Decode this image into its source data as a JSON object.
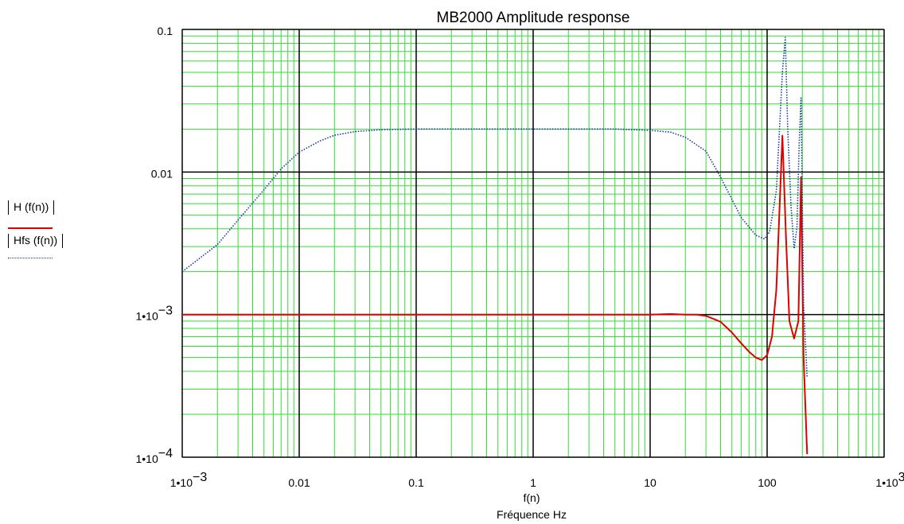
{
  "chart_data": {
    "type": "line",
    "title": "MB2000 Amplitude response",
    "xlabel": "f(n)",
    "xlabel2": "Fréquence Hz",
    "xscale": "log",
    "yscale": "log",
    "xlim": [
      0.001,
      1000
    ],
    "ylim": [
      0.0001,
      0.1
    ],
    "grid": true,
    "x_ticks": [
      {
        "value": 0.001,
        "label": "1•10",
        "exp": "−3"
      },
      {
        "value": 0.01,
        "label": "0.01",
        "exp": ""
      },
      {
        "value": 0.1,
        "label": "0.1",
        "exp": ""
      },
      {
        "value": 1,
        "label": "1",
        "exp": ""
      },
      {
        "value": 10,
        "label": "10",
        "exp": ""
      },
      {
        "value": 100,
        "label": "100",
        "exp": ""
      },
      {
        "value": 1000,
        "label": "1•10",
        "exp": "3"
      }
    ],
    "y_ticks": [
      {
        "value": 0.1,
        "label": "0.1",
        "exp": ""
      },
      {
        "value": 0.01,
        "label": "0.01",
        "exp": ""
      },
      {
        "value": 0.001,
        "label": "1•10",
        "exp": "−3"
      },
      {
        "value": 0.0001,
        "label": "1•10",
        "exp": "−4"
      }
    ],
    "series": [
      {
        "name": "| H (f(n)) |",
        "color": "#e00000",
        "style": "solid",
        "x": [
          0.001,
          0.01,
          0.1,
          1,
          10,
          15,
          20,
          25,
          30,
          40,
          50,
          60,
          70,
          80,
          90,
          100,
          110,
          120,
          135,
          145,
          155,
          170,
          185,
          195,
          205,
          220
        ],
        "y": [
          0.001,
          0.001,
          0.001,
          0.001,
          0.001,
          0.00101,
          0.001,
          0.001,
          0.00098,
          0.00089,
          0.00075,
          0.00063,
          0.00055,
          0.0005,
          0.00048,
          0.00052,
          0.0007,
          0.0015,
          0.018,
          0.0035,
          0.0009,
          0.00068,
          0.0009,
          0.0092,
          0.0005,
          0.000105
        ]
      },
      {
        "name": "| Hfs (f(n)) |",
        "color": "#1a3aa8",
        "style": "dotted",
        "x": [
          0.001,
          0.002,
          0.003,
          0.005,
          0.007,
          0.01,
          0.015,
          0.02,
          0.03,
          0.05,
          0.1,
          0.5,
          1,
          5,
          10,
          15,
          20,
          30,
          40,
          60,
          80,
          95,
          105,
          120,
          135,
          143,
          150,
          160,
          170,
          180,
          188,
          195,
          205,
          220
        ],
        "y": [
          0.002,
          0.0031,
          0.0046,
          0.0075,
          0.0105,
          0.0138,
          0.0165,
          0.0181,
          0.0192,
          0.0198,
          0.02,
          0.02,
          0.02,
          0.02,
          0.0196,
          0.019,
          0.0175,
          0.014,
          0.0092,
          0.0048,
          0.0036,
          0.0034,
          0.0038,
          0.0074,
          0.05,
          0.088,
          0.02,
          0.0058,
          0.0029,
          0.0041,
          0.016,
          0.033,
          0.0012,
          0.00036
        ]
      }
    ]
  },
  "legend": [
    {
      "label": "H  (f(n))",
      "color": "#e00000",
      "style": "solid"
    },
    {
      "label": "Hfs  (f(n))",
      "color": "#1a3aa8",
      "style": "dotted"
    }
  ]
}
